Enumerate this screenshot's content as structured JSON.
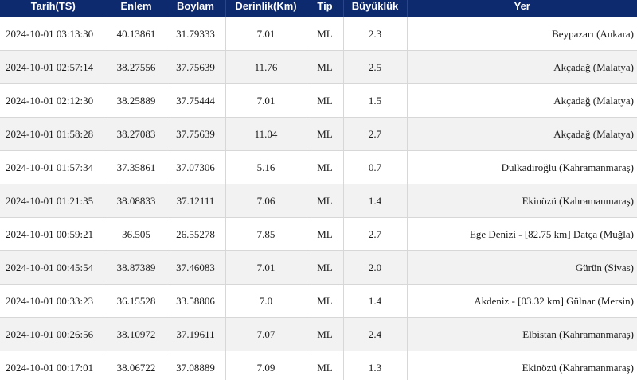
{
  "table": {
    "headers": [
      "Tarih(TS)",
      "Enlem",
      "Boylam",
      "Derinlik(Km)",
      "Tip",
      "Büyüklük",
      "Yer"
    ],
    "rows": [
      [
        "2024-10-01 03:13:30",
        "40.13861",
        "31.79333",
        "7.01",
        "ML",
        "2.3",
        "Beypazarı (Ankara)"
      ],
      [
        "2024-10-01 02:57:14",
        "38.27556",
        "37.75639",
        "11.76",
        "ML",
        "2.5",
        "Akçadağ (Malatya)"
      ],
      [
        "2024-10-01 02:12:30",
        "38.25889",
        "37.75444",
        "7.01",
        "ML",
        "1.5",
        "Akçadağ (Malatya)"
      ],
      [
        "2024-10-01 01:58:28",
        "38.27083",
        "37.75639",
        "11.04",
        "ML",
        "2.7",
        "Akçadağ (Malatya)"
      ],
      [
        "2024-10-01 01:57:34",
        "37.35861",
        "37.07306",
        "5.16",
        "ML",
        "0.7",
        "Dulkadiroğlu (Kahramanmaraş)"
      ],
      [
        "2024-10-01 01:21:35",
        "38.08833",
        "37.12111",
        "7.06",
        "ML",
        "1.4",
        "Ekinözü (Kahramanmaraş)"
      ],
      [
        "2024-10-01 00:59:21",
        "36.505",
        "26.55278",
        "7.85",
        "ML",
        "2.7",
        "Ege Denizi - [82.75 km] Datça (Muğla)"
      ],
      [
        "2024-10-01 00:45:54",
        "38.87389",
        "37.46083",
        "7.01",
        "ML",
        "2.0",
        "Gürün (Sivas)"
      ],
      [
        "2024-10-01 00:33:23",
        "36.15528",
        "33.58806",
        "7.0",
        "ML",
        "1.4",
        "Akdeniz - [03.32 km] Gülnar (Mersin)"
      ],
      [
        "2024-10-01 00:26:56",
        "38.10972",
        "37.19611",
        "7.07",
        "ML",
        "2.4",
        "Elbistan (Kahramanmaraş)"
      ],
      [
        "2024-10-01 00:17:01",
        "38.06722",
        "37.08889",
        "7.09",
        "ML",
        "1.3",
        "Ekinözü (Kahramanmaraş)"
      ]
    ]
  }
}
